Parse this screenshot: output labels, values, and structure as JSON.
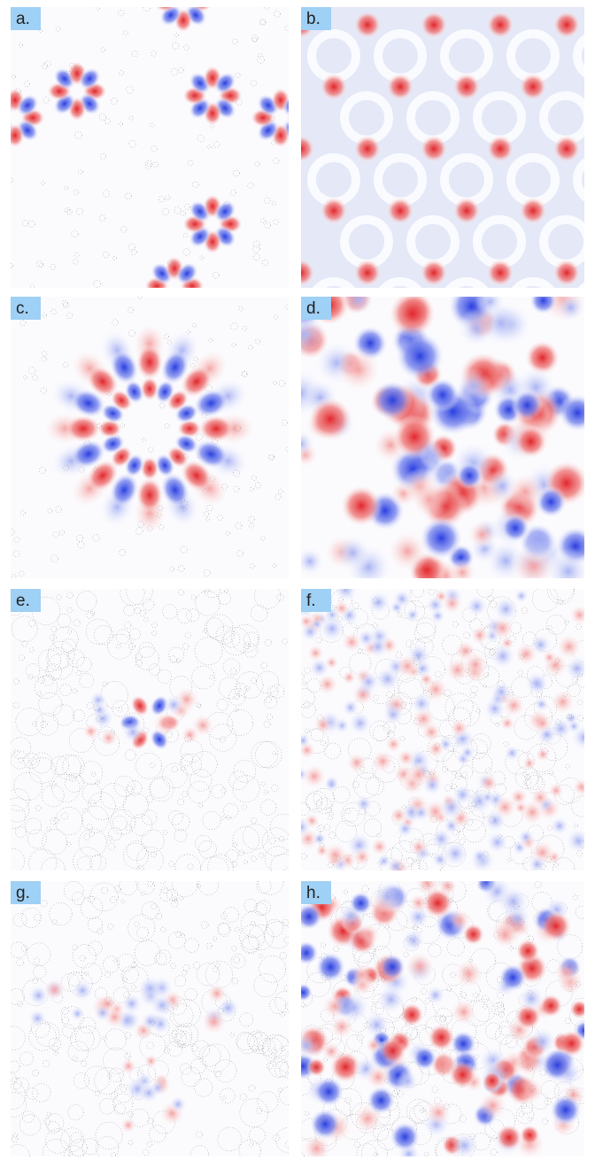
{
  "panels": [
    {
      "label": "a."
    },
    {
      "label": "b."
    },
    {
      "label": "c."
    },
    {
      "label": "d."
    },
    {
      "label": "e."
    },
    {
      "label": "f."
    },
    {
      "label": "g."
    },
    {
      "label": "h."
    }
  ]
}
